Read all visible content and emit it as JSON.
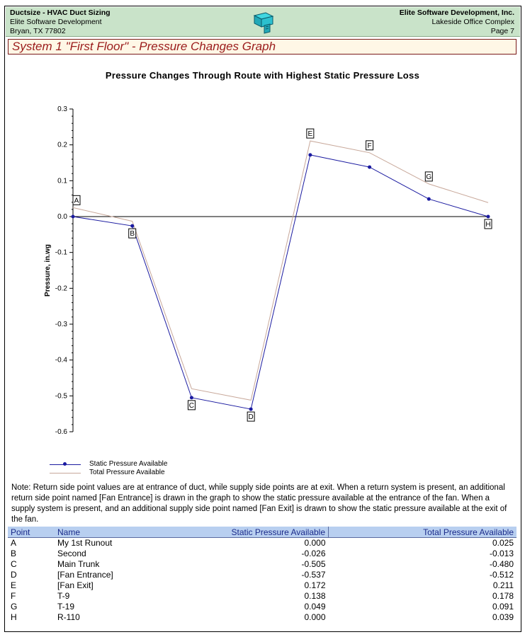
{
  "header": {
    "app_title": "Ductsize - HVAC Duct Sizing",
    "company": "Elite Software Development",
    "location": "Bryan, TX 77802",
    "right_company": "Elite Software Development, Inc.",
    "right_office": "Lakeside Office Complex",
    "page": "Page 7",
    "logo_icon": "duct-logo-icon"
  },
  "section_title": "System 1 \"First Floor\" - Pressure Changes Graph",
  "chart_data": {
    "type": "line",
    "title": "Pressure Changes Through Route with Highest Static Pressure Loss",
    "ylabel": "Pressure, in.wg",
    "xlabel": "",
    "ylim": [
      -0.6,
      0.3
    ],
    "yticks": [
      "0.3",
      "0.2",
      "0.1",
      "0.0",
      "-0.1",
      "-0.2",
      "-0.3",
      "-0.4",
      "-0.5",
      "-0.6"
    ],
    "categories": [
      "A",
      "B",
      "C",
      "D",
      "E",
      "F",
      "G",
      "H"
    ],
    "series": [
      {
        "name": "Static Pressure Available",
        "color": "#1a1aa0",
        "values": [
          0.0,
          -0.026,
          -0.505,
          -0.537,
          0.172,
          0.138,
          0.049,
          0.0
        ]
      },
      {
        "name": "Total Pressure Available",
        "color": "#c8a89a",
        "values": [
          0.025,
          -0.013,
          -0.48,
          -0.512,
          0.211,
          0.178,
          0.091,
          0.039
        ]
      }
    ],
    "legend_position": "bottom-left"
  },
  "note": "Note:  Return side point values are at entrance of duct, while supply side points are at exit.  When a return system is present, an additional return side point named [Fan Entrance] is drawn in the graph to show the static pressure available at the entrance of the fan.  When a supply system is present, and an additional supply side point named [Fan Exit] is drawn to show the static pressure available at the exit of the fan.",
  "table": {
    "headers": [
      "Point",
      "Name",
      "Static Pressure Available",
      "Total Pressure Available"
    ],
    "rows": [
      [
        "A",
        "My 1st Runout",
        "0.000",
        "0.025"
      ],
      [
        "B",
        "Second",
        "-0.026",
        "-0.013"
      ],
      [
        "C",
        "Main Trunk",
        "-0.505",
        "-0.480"
      ],
      [
        "D",
        "[Fan Entrance]",
        "-0.537",
        "-0.512"
      ],
      [
        "E",
        "[Fan Exit]",
        "0.172",
        "0.211"
      ],
      [
        "F",
        "T-9",
        "0.138",
        "0.178"
      ],
      [
        "G",
        "T-19",
        "0.049",
        "0.091"
      ],
      [
        "H",
        "R-110",
        "0.000",
        "0.039"
      ]
    ]
  }
}
